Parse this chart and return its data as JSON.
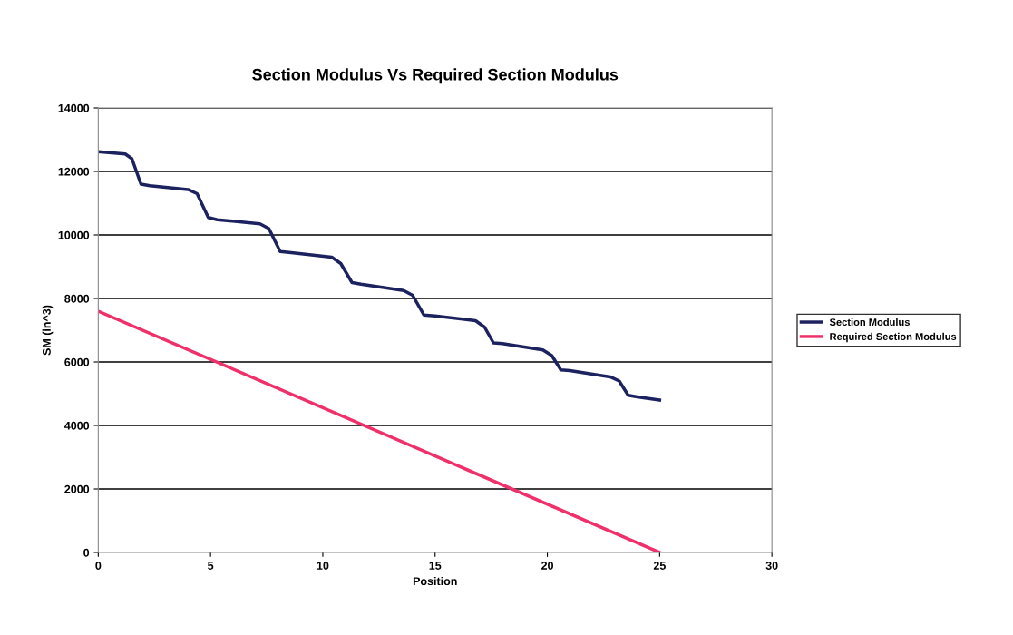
{
  "chart_data": {
    "type": "line",
    "title": "Section Modulus Vs Required Section Modulus",
    "xlabel": "Position",
    "ylabel": "SM (in^3)",
    "xlim": [
      0,
      30
    ],
    "xticks": [
      0,
      5,
      10,
      15,
      20,
      25,
      30
    ],
    "ylim": [
      0,
      14000
    ],
    "yticks": [
      0,
      2000,
      4000,
      6000,
      8000,
      10000,
      12000,
      14000
    ],
    "grid": "y",
    "legend": "right",
    "marker": "none",
    "line_style": "solid",
    "series": [
      {
        "name": "Section Modulus",
        "color": "#1c2260",
        "x": [
          0,
          1.2,
          1.5,
          1.9,
          2.3,
          4.0,
          4.4,
          4.9,
          5.3,
          7.2,
          7.6,
          8.1,
          8.5,
          10.4,
          10.8,
          11.3,
          11.7,
          13.6,
          14.0,
          14.5,
          15.0,
          16.8,
          17.2,
          17.6,
          18.0,
          19.8,
          20.2,
          20.6,
          21.0,
          22.8,
          23.2,
          23.6,
          24.0,
          25
        ],
        "values": [
          12620,
          12550,
          12400,
          11600,
          11550,
          11430,
          11300,
          10550,
          10480,
          10350,
          10200,
          9480,
          9450,
          9300,
          9100,
          8500,
          8450,
          8250,
          8100,
          7480,
          7450,
          7300,
          7100,
          6600,
          6580,
          6380,
          6200,
          5750,
          5730,
          5530,
          5400,
          4950,
          4900,
          4800
        ]
      },
      {
        "name": "Required Section Modulus",
        "color": "#f0306a",
        "x": [
          0,
          25
        ],
        "values": [
          7600,
          0
        ]
      }
    ]
  }
}
